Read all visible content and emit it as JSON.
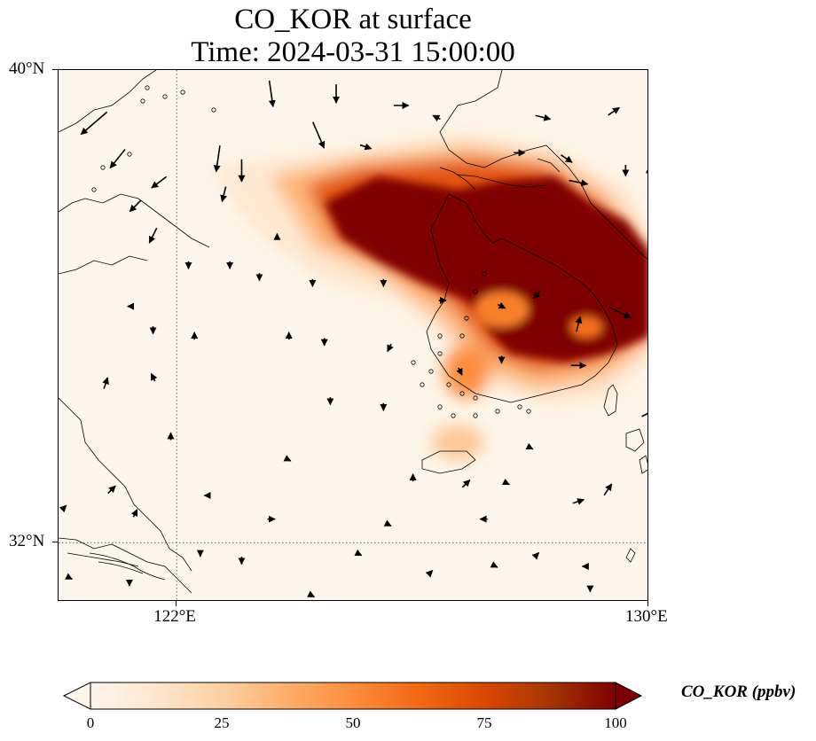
{
  "title": {
    "line1": "CO_KOR at surface",
    "line2": "Time: 2024-03-31 15:00:00"
  },
  "map": {
    "extent": {
      "lon_min": 120.0,
      "lon_max": 130.0,
      "lat_min": 31.0,
      "lat_max": 40.0
    },
    "lat_ticks": [
      {
        "value": 40,
        "label": "40°N"
      },
      {
        "value": 32,
        "label": "32°N"
      }
    ],
    "lon_ticks": [
      {
        "value": 122,
        "label": "122°E"
      },
      {
        "value": 130,
        "label": "130°E"
      }
    ],
    "gridlines": {
      "lat": [
        32
      ],
      "lon": [
        122
      ],
      "style": "dotted"
    }
  },
  "colorbar": {
    "label": "CO_KOR (ppbv)",
    "min": 0,
    "max": 100,
    "extend": "both",
    "colormap": [
      "#fff5eb",
      "#fee6ce",
      "#fdd0a2",
      "#fdae6b",
      "#fd8d3c",
      "#f16913",
      "#d94801",
      "#a63603",
      "#7f0000"
    ],
    "ticks": [
      {
        "value": 0,
        "label": "0"
      },
      {
        "value": 25,
        "label": "25"
      },
      {
        "value": 50,
        "label": "50"
      },
      {
        "value": 75,
        "label": "75"
      },
      {
        "value": 100,
        "label": "100"
      }
    ]
  },
  "plume": {
    "main_core": {
      "lon": 128.2,
      "lat": 36.6,
      "value": 100
    },
    "west_arm": {
      "from_lon": 124.8,
      "from_lat": 37.2,
      "value": 90
    },
    "jeju_patch": {
      "lon": 126.7,
      "lat": 33.6,
      "value": 35
    }
  },
  "wind": {
    "arrows": [
      [
        120.6,
        39.1,
        -0.7,
        -0.6
      ],
      [
        121.0,
        38.5,
        -0.4,
        -0.5
      ],
      [
        121.7,
        38.1,
        -0.4,
        -0.3
      ],
      [
        121.3,
        37.7,
        -0.3,
        -0.3
      ],
      [
        121.6,
        37.2,
        -0.2,
        -0.4
      ],
      [
        122.7,
        38.5,
        -0.1,
        -0.7
      ],
      [
        123.1,
        38.3,
        0.0,
        -0.6
      ],
      [
        122.8,
        37.9,
        -0.1,
        -0.4
      ],
      [
        123.6,
        39.6,
        0.1,
        -0.7
      ],
      [
        124.7,
        39.6,
        0.0,
        -0.5
      ],
      [
        125.8,
        39.4,
        0.4,
        0.0
      ],
      [
        126.4,
        39.2,
        -0.2,
        0.1
      ],
      [
        128.2,
        39.2,
        0.4,
        -0.1
      ],
      [
        129.4,
        39.3,
        0.3,
        0.2
      ],
      [
        124.4,
        38.9,
        0.3,
        -0.7
      ],
      [
        125.2,
        38.7,
        0.3,
        -0.1
      ],
      [
        127.8,
        38.6,
        0.3,
        0.0
      ],
      [
        128.6,
        38.5,
        0.3,
        -0.2
      ],
      [
        128.8,
        38.1,
        0.5,
        -0.1
      ],
      [
        129.6,
        38.3,
        0.0,
        -0.3
      ],
      [
        122.2,
        36.7,
        0.0,
        -0.2
      ],
      [
        122.9,
        36.7,
        0.0,
        -0.2
      ],
      [
        123.4,
        36.5,
        0.0,
        -0.2
      ],
      [
        124.3,
        36.4,
        0.0,
        -0.2
      ],
      [
        125.5,
        36.4,
        0.0,
        -0.2
      ],
      [
        126.5,
        36.1,
        0.2,
        0.0
      ],
      [
        127.5,
        36.0,
        0.2,
        -0.1
      ],
      [
        128.1,
        36.2,
        -0.2,
        -0.2
      ],
      [
        128.8,
        35.7,
        0.1,
        0.4
      ],
      [
        129.5,
        35.9,
        0.6,
        -0.3
      ],
      [
        121.2,
        36.0,
        -0.1,
        0.0
      ],
      [
        121.6,
        35.6,
        0.0,
        -0.2
      ],
      [
        122.3,
        35.5,
        0.0,
        0.2
      ],
      [
        123.9,
        35.5,
        0.0,
        0.2
      ],
      [
        124.5,
        35.4,
        0.0,
        -0.2
      ],
      [
        125.6,
        35.3,
        -0.1,
        -0.2
      ],
      [
        126.8,
        34.9,
        0.1,
        -0.2
      ],
      [
        127.5,
        35.1,
        0.0,
        -0.2
      ],
      [
        128.8,
        35.0,
        0.4,
        0.0
      ],
      [
        120.8,
        34.7,
        0.1,
        0.3
      ],
      [
        121.6,
        34.8,
        -0.1,
        0.2
      ],
      [
        124.6,
        34.4,
        0.0,
        -0.2
      ],
      [
        125.5,
        34.3,
        0.0,
        -0.2
      ],
      [
        121.9,
        33.8,
        0.0,
        0.2
      ],
      [
        123.9,
        33.4,
        0.0,
        0.0
      ],
      [
        126.0,
        33.1,
        0.0,
        0.2
      ],
      [
        126.9,
        33.0,
        0.2,
        0.2
      ],
      [
        127.6,
        33.0,
        0.0,
        0.0
      ],
      [
        128.0,
        33.6,
        0.0,
        0.0
      ],
      [
        120.9,
        32.9,
        0.2,
        0.2
      ],
      [
        121.3,
        32.5,
        0.1,
        0.2
      ],
      [
        122.5,
        32.8,
        -0.1,
        0.0
      ],
      [
        123.6,
        32.4,
        0.2,
        0.0
      ],
      [
        125.6,
        32.3,
        0.0,
        0.0
      ],
      [
        127.2,
        32.4,
        -0.2,
        0.0
      ],
      [
        128.8,
        32.7,
        0.3,
        0.1
      ],
      [
        129.3,
        32.9,
        0.2,
        0.3
      ],
      [
        120.1,
        32.6,
        0.1,
        0.1
      ],
      [
        122.4,
        31.8,
        0.0,
        -0.1
      ],
      [
        123.1,
        31.7,
        0.0,
        -0.2
      ],
      [
        125.1,
        31.8,
        0.0,
        0.0
      ],
      [
        127.4,
        31.6,
        0.0,
        0.0
      ],
      [
        128.1,
        31.8,
        0.1,
        0.1
      ],
      [
        128.9,
        31.6,
        -0.1,
        0.0
      ],
      [
        120.2,
        31.4,
        0.0,
        0.0
      ],
      [
        121.2,
        31.3,
        0.0,
        -0.1
      ],
      [
        124.3,
        31.1,
        0.0,
        0.0
      ],
      [
        126.3,
        31.5,
        0.1,
        0.1
      ],
      [
        129.0,
        31.2,
        0.0,
        -0.1
      ],
      [
        130.0,
        34.2,
        0.4,
        0.2
      ],
      [
        130.0,
        38.3,
        0.0,
        0.2
      ],
      [
        123.7,
        37.2,
        0.0,
        0.1
      ]
    ]
  }
}
